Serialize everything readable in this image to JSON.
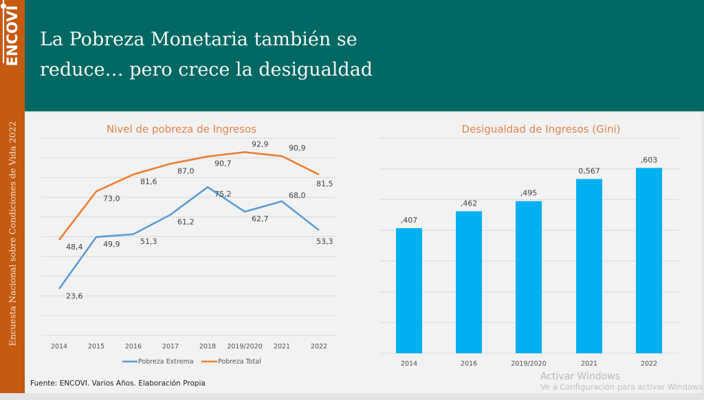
{
  "sidebar": {
    "logo": "ENCOVI",
    "caption": "Encuesta Nacional sobre Condiciones de Vida 2022"
  },
  "header": {
    "title_line1": "La Pobreza Monetaria también se",
    "title_line2": "reduce… pero crece la desigualdad"
  },
  "colors": {
    "sidebar": "#c55a11",
    "header": "#006863",
    "extreme": "#5b9bd5",
    "total": "#ed7d31",
    "bars": "#00b0f0"
  },
  "chart_data": [
    {
      "type": "line",
      "title": "Nivel de pobreza de Ingresos",
      "categories": [
        "2014",
        "2015",
        "2016",
        "2017",
        "2018",
        "2019/2020",
        "2021",
        "2022"
      ],
      "series": [
        {
          "name": "Pobreza Extrema",
          "values": [
            23.6,
            49.9,
            51.3,
            61.2,
            75.2,
            62.7,
            68.0,
            53.3
          ],
          "labels": [
            "23,6",
            "49,9",
            "51,3",
            "61,2",
            "75,2",
            "62,7",
            "68,0",
            "53,3"
          ]
        },
        {
          "name": "Pobreza Total",
          "values": [
            48.4,
            73.0,
            81.6,
            87.0,
            90.7,
            92.9,
            90.9,
            81.5
          ],
          "labels": [
            "48,4",
            "73,0",
            "81,6",
            "87,0",
            "90,7",
            "92,9",
            "90,9",
            "81,5"
          ]
        }
      ],
      "ylim": [
        0,
        100
      ],
      "grid": true,
      "legend": "bottom",
      "xlabel": "",
      "ylabel": ""
    },
    {
      "type": "bar",
      "title": "Desigualdad de Ingresos (Gini)",
      "categories": [
        "2014",
        "2016",
        "2019/2020",
        "2021",
        "2022"
      ],
      "values": [
        0.407,
        0.462,
        0.495,
        0.567,
        0.603
      ],
      "labels": [
        ",407",
        ",462",
        ",495",
        "0,567",
        ",603"
      ],
      "ylim": [
        0,
        0.7
      ],
      "grid": true,
      "xlabel": "",
      "ylabel": ""
    }
  ],
  "footer": {
    "source": "Fuente: ENCOVI. Varios Años. Elaboración Propia"
  },
  "watermark": {
    "line1": "Activar Windows",
    "line2": "Ve a Configuración para activar Windows."
  }
}
